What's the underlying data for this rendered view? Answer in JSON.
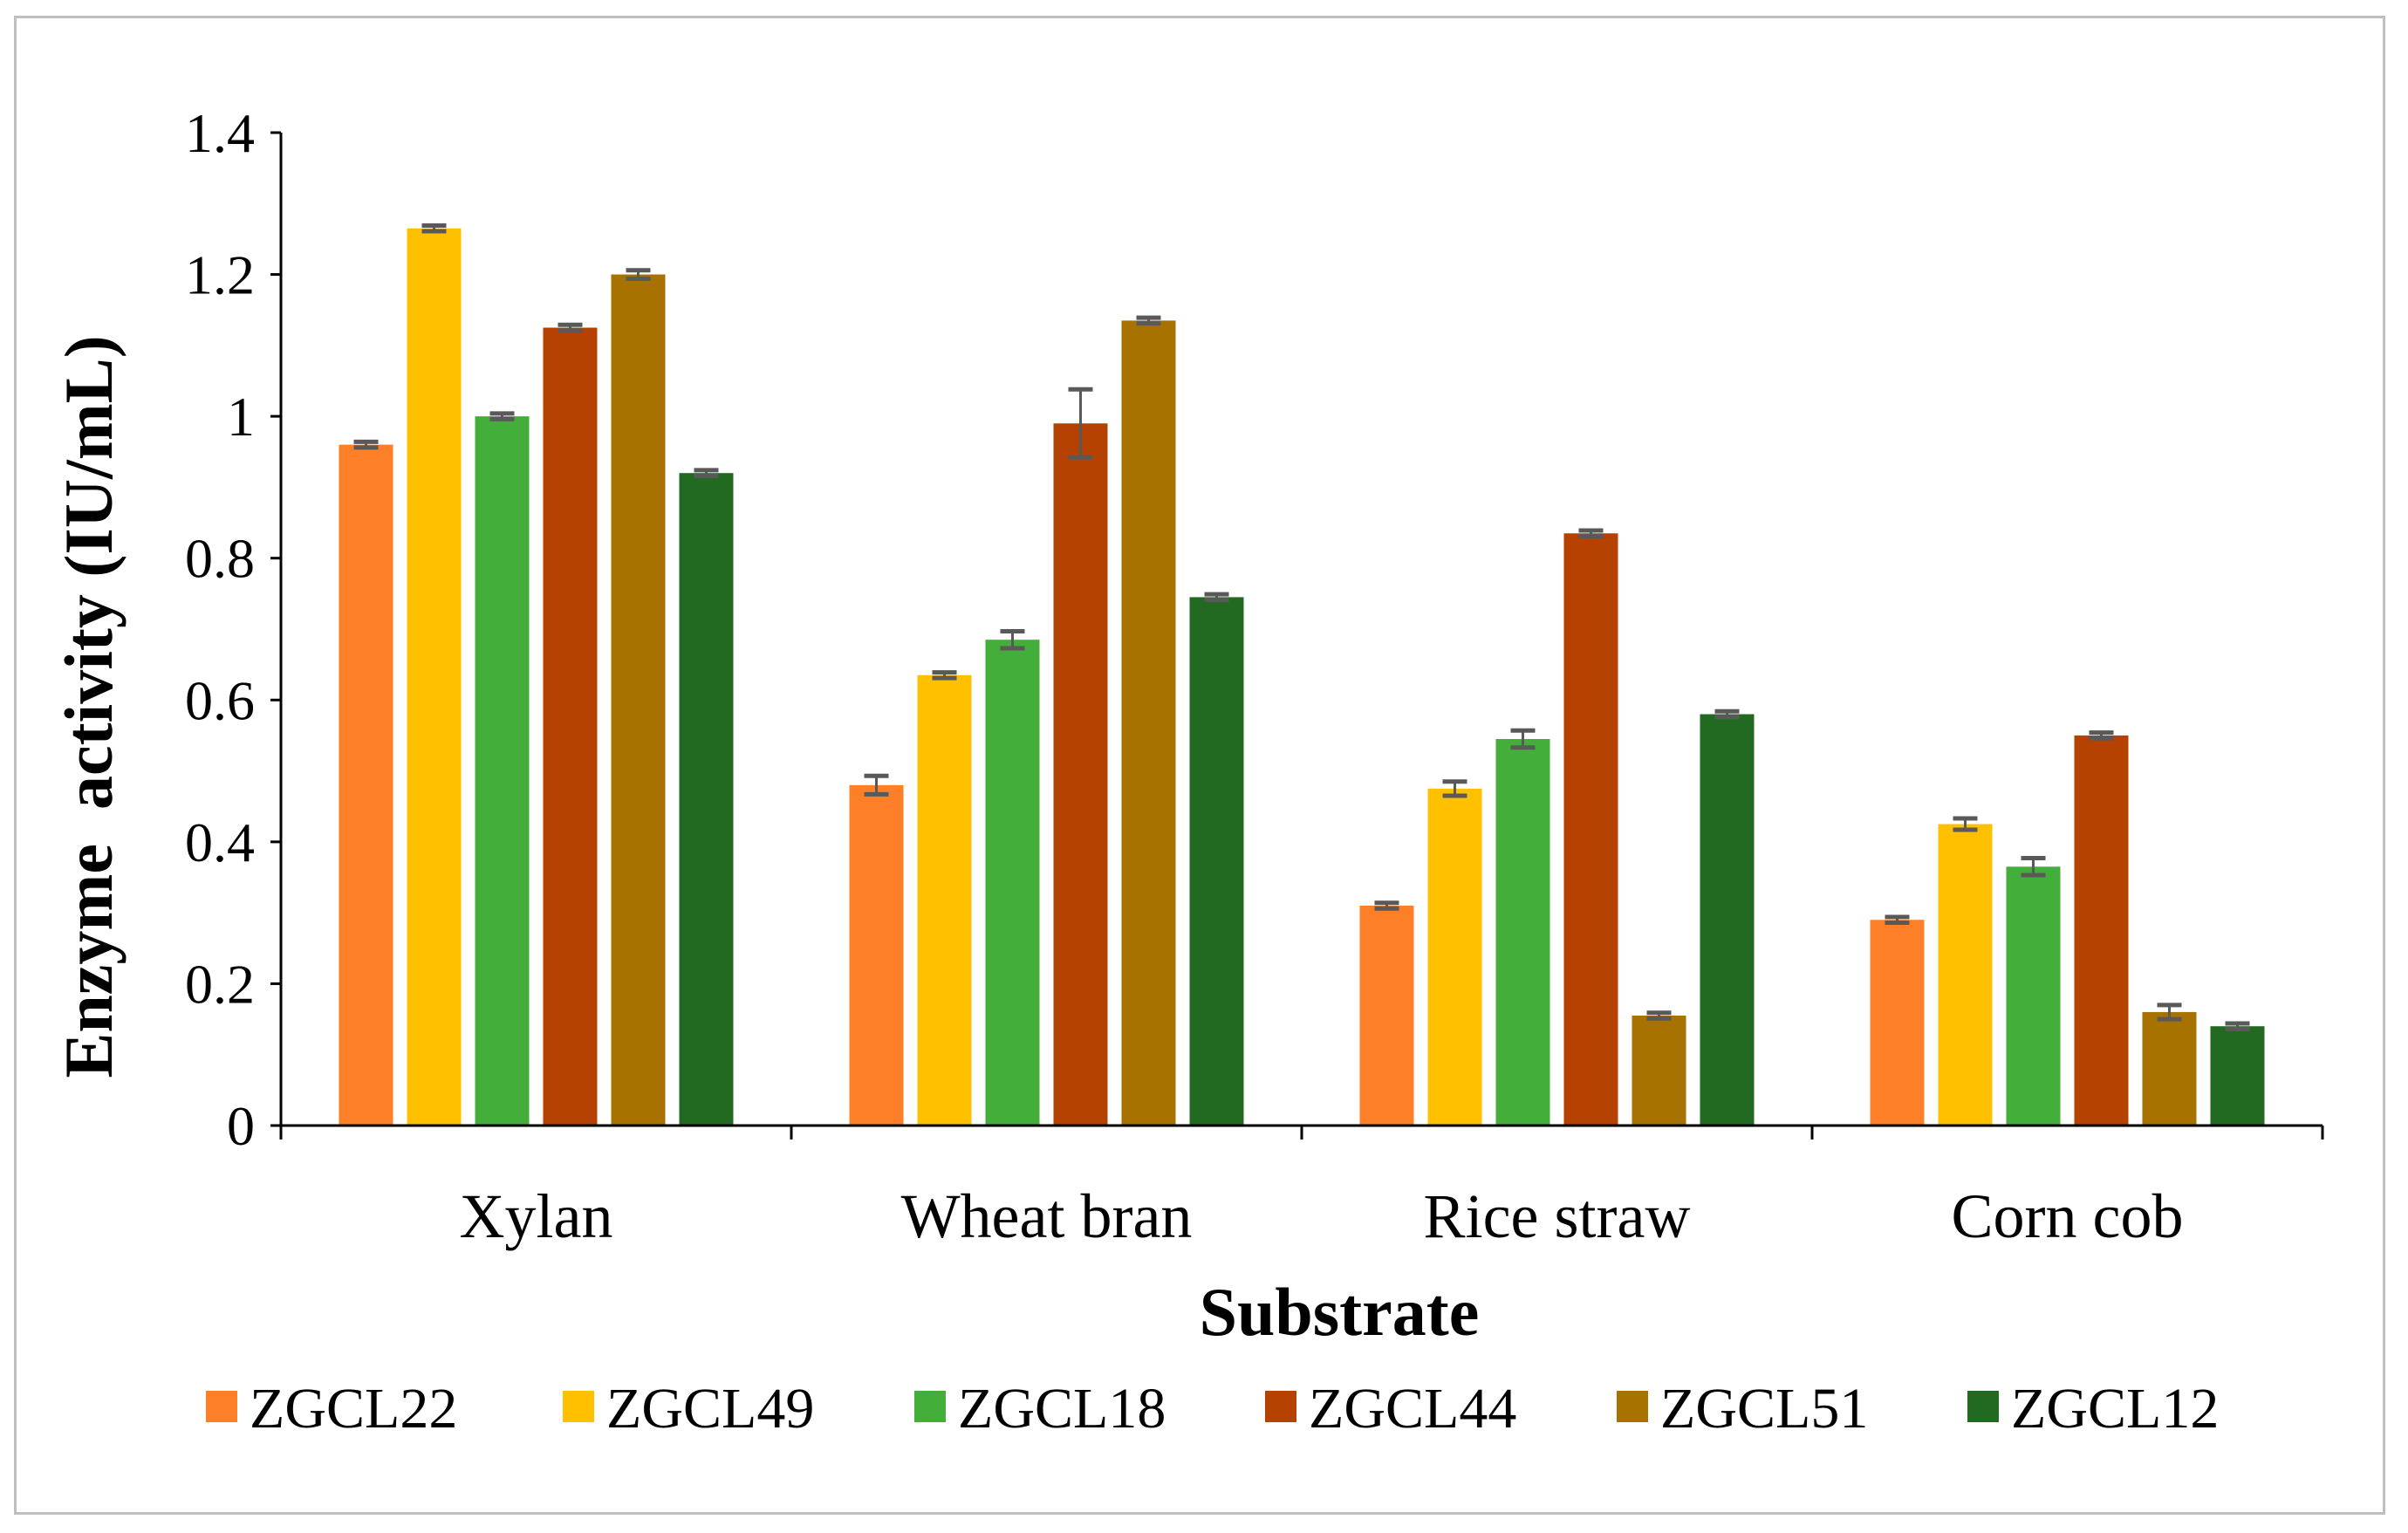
{
  "chart_data": {
    "type": "bar",
    "title": "",
    "xlabel": "Substrate",
    "ylabel": "Enzyme  activity (IU/mL)",
    "ylim": [
      0,
      1.4
    ],
    "yticks": [
      0,
      0.2,
      0.4,
      0.6,
      0.8,
      1,
      1.2,
      1.4
    ],
    "ytick_labels": [
      "0",
      "0.2",
      "0.4",
      "0.6",
      "0.8",
      "1",
      "1.2",
      "1.4"
    ],
    "categories": [
      "Xylan",
      "Wheat bran",
      "Rice straw",
      "Corn cob"
    ],
    "grid": false,
    "legend_position": "bottom",
    "series": [
      {
        "name": "ZGCL22",
        "color": "#fd7f27",
        "values": [
          0.96,
          0.48,
          0.31,
          0.29
        ],
        "errors": [
          0.004,
          0.013,
          0.004,
          0.004
        ]
      },
      {
        "name": "ZGCL49",
        "color": "#ffc000",
        "values": [
          1.265,
          0.635,
          0.475,
          0.425
        ],
        "errors": [
          0.004,
          0.004,
          0.01,
          0.008
        ]
      },
      {
        "name": "ZGCL18",
        "color": "#44ae3a",
        "values": [
          1.0,
          0.685,
          0.545,
          0.365
        ],
        "errors": [
          0.004,
          0.012,
          0.012,
          0.012
        ]
      },
      {
        "name": "ZGCL44",
        "color": "#b54200",
        "values": [
          1.125,
          0.99,
          0.835,
          0.55
        ],
        "errors": [
          0.004,
          0.048,
          0.004,
          0.004
        ]
      },
      {
        "name": "ZGCL51",
        "color": "#a77200",
        "values": [
          1.2,
          1.135,
          0.155,
          0.16
        ],
        "errors": [
          0.006,
          0.004,
          0.004,
          0.01
        ]
      },
      {
        "name": "ZGCL12",
        "color": "#226a22",
        "values": [
          0.92,
          0.745,
          0.58,
          0.14
        ],
        "errors": [
          0.004,
          0.004,
          0.004,
          0.004
        ]
      }
    ]
  },
  "colors": {
    "axis": "#000000",
    "error_bar": "#595959",
    "frame": "#bfbfbf"
  }
}
